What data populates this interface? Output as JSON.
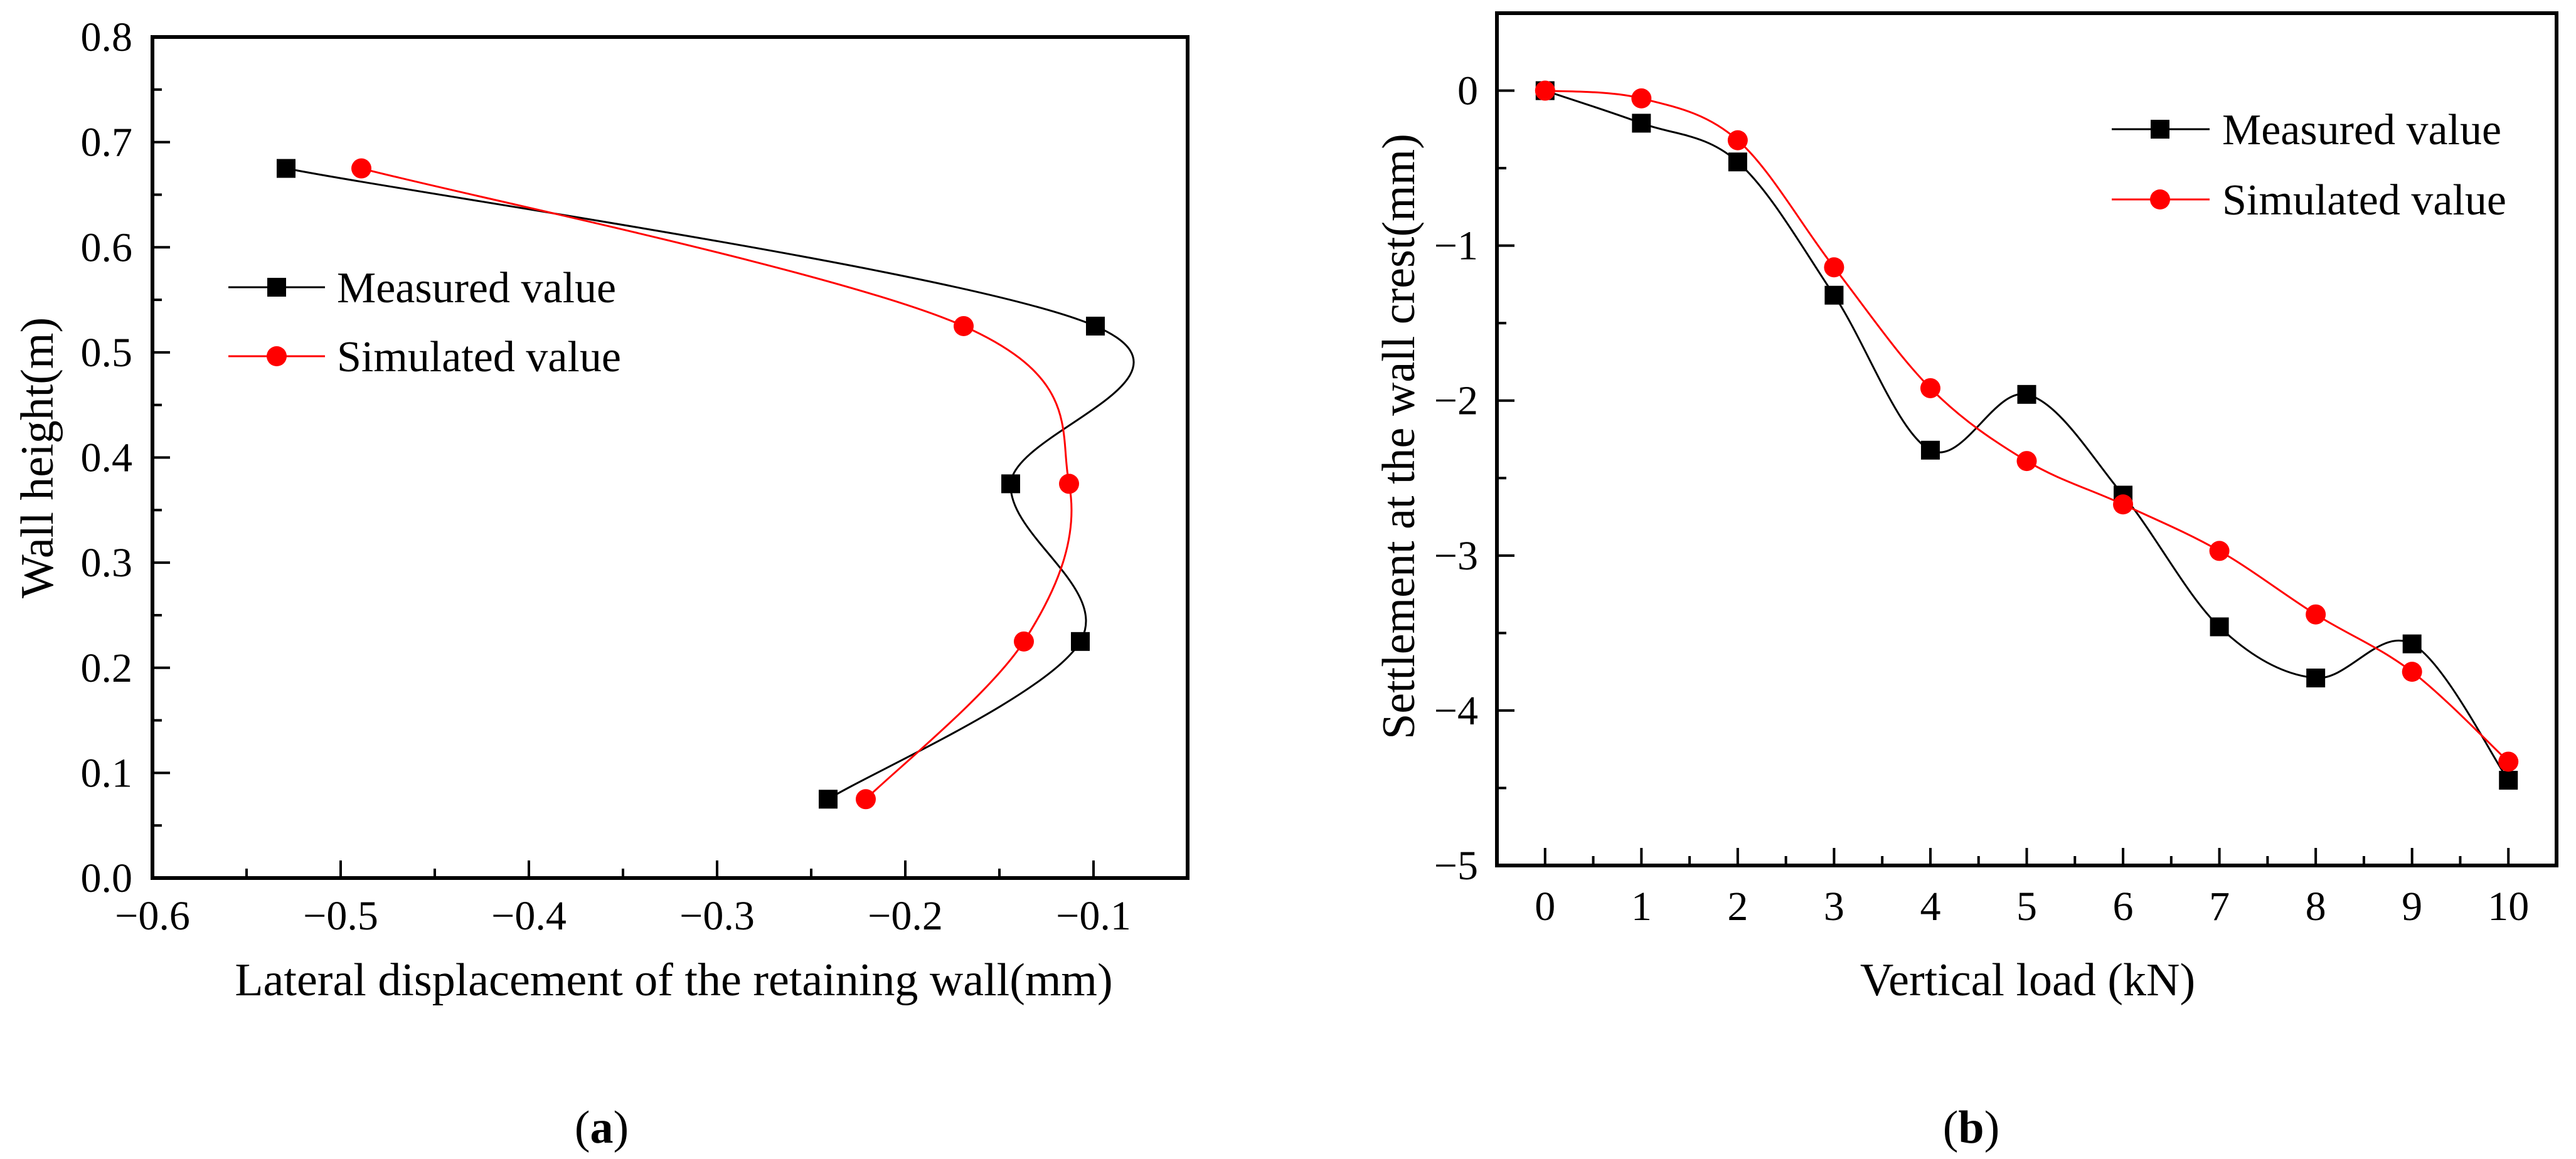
{
  "chart_data": [
    {
      "type": "line",
      "caption": "a",
      "xlabel": "Lateral displacement of the retaining wall(mm)",
      "ylabel": "Wall height(m)",
      "xlim": [
        -0.6,
        -0.05
      ],
      "ylim": [
        0.0,
        0.8
      ],
      "xticks": [
        "−0.6",
        "−0.5",
        "−0.4",
        "−0.3",
        "−0.2",
        "−0.1"
      ],
      "xtick_values": [
        -0.6,
        -0.5,
        -0.4,
        -0.3,
        -0.2,
        -0.1
      ],
      "yticks": [
        "0.0",
        "0.1",
        "0.2",
        "0.3",
        "0.4",
        "0.5",
        "0.6",
        "0.7",
        "0.8"
      ],
      "ytick_values": [
        0,
        0.1,
        0.2,
        0.3,
        0.4,
        0.5,
        0.6,
        0.7,
        0.8
      ],
      "grid": false,
      "legend_position": "upper-left",
      "series": [
        {
          "name": "Measured value",
          "color": "#000000",
          "marker": "square",
          "x": [
            -0.529,
            -0.099,
            -0.144,
            -0.107,
            -0.241
          ],
          "y": [
            0.675,
            0.525,
            0.375,
            0.225,
            0.075
          ]
        },
        {
          "name": "Simulated value",
          "color": "#ff0000",
          "marker": "circle",
          "x": [
            -0.489,
            -0.169,
            -0.113,
            -0.137,
            -0.221
          ],
          "y": [
            0.675,
            0.525,
            0.375,
            0.225,
            0.075
          ]
        }
      ]
    },
    {
      "type": "line",
      "caption": "b",
      "xlabel": "Vertical load (kN)",
      "ylabel": "Settlement at the wall crest(mm)",
      "xlim": [
        -0.5,
        10.5
      ],
      "ylim": [
        -5,
        0.5
      ],
      "xticks": [
        "0",
        "1",
        "2",
        "3",
        "4",
        "5",
        "6",
        "7",
        "8",
        "9",
        "10"
      ],
      "xtick_values": [
        0,
        1,
        2,
        3,
        4,
        5,
        6,
        7,
        8,
        9,
        10
      ],
      "yticks": [
        "−5",
        "−4",
        "−3",
        "−2",
        "−1",
        "0"
      ],
      "ytick_values": [
        -5,
        -4,
        -3,
        -2,
        -1,
        0
      ],
      "grid": false,
      "legend_position": "upper-right",
      "series": [
        {
          "name": "Measured value",
          "color": "#000000",
          "marker": "square",
          "x": [
            0,
            1,
            2,
            3,
            4,
            5,
            6,
            7,
            8,
            9,
            10
          ],
          "y": [
            0,
            -0.21,
            -0.46,
            -1.32,
            -2.32,
            -1.96,
            -2.61,
            -3.46,
            -3.79,
            -3.57,
            -4.45
          ]
        },
        {
          "name": "Simulated value",
          "color": "#ff0000",
          "marker": "circle",
          "x": [
            0,
            1,
            2,
            3,
            4,
            5,
            6,
            7,
            8,
            9,
            10
          ],
          "y": [
            0,
            -0.05,
            -0.32,
            -1.14,
            -1.92,
            -2.39,
            -2.67,
            -2.97,
            -3.38,
            -3.75,
            -4.33
          ]
        }
      ]
    }
  ]
}
